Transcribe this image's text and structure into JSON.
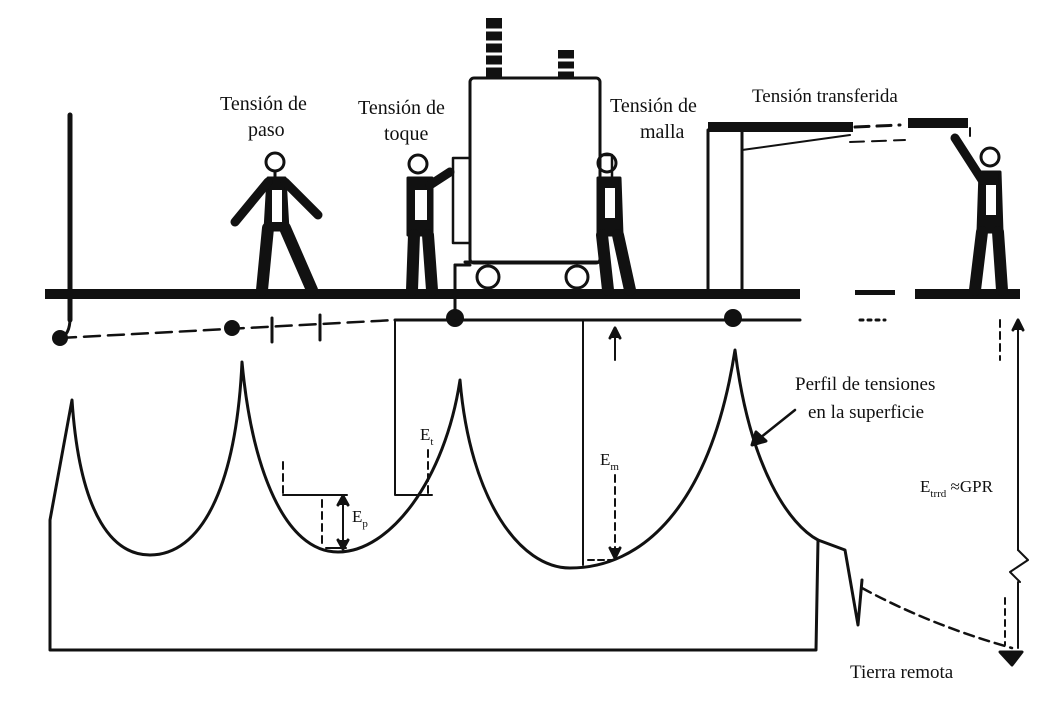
{
  "labels": {
    "paso_line1": "Tensión de",
    "paso_line2": "paso",
    "toque_line1": "Tensión de",
    "toque_line2": "toque",
    "malla_line1": "Tensión de",
    "malla_line2": "malla",
    "transferida": "Tensión transferida",
    "perfil_line1": "Perfil de tensiones",
    "perfil_line2": "en la superficie",
    "tierra_remota": "Tierra remota"
  },
  "symbols": {
    "ep_main": "E",
    "ep_sub": "p",
    "et_main": "E",
    "et_sub": "t",
    "em_main": "E",
    "em_sub": "m",
    "etrrd_main": "E",
    "etrrd_sub": "trrd",
    "etrrd_rest": " ≈GPR"
  },
  "colors": {
    "ink": "#111111",
    "background": "#ffffff"
  }
}
